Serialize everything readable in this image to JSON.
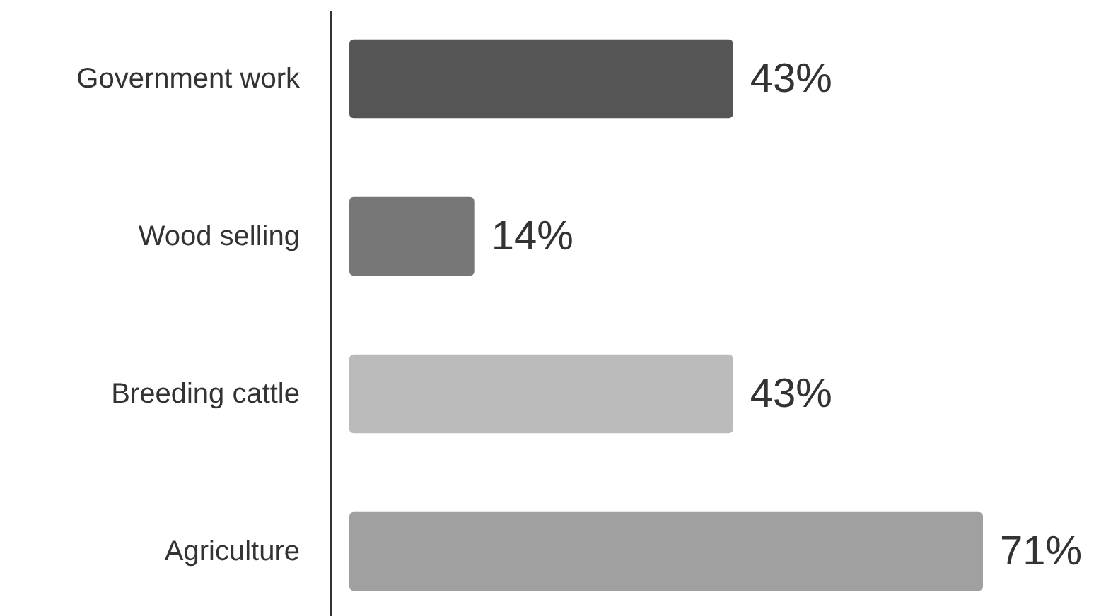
{
  "chart_data": {
    "type": "bar",
    "orientation": "horizontal",
    "categories": [
      "Government work",
      "Wood selling",
      "Breeding cattle",
      "Agriculture"
    ],
    "values": [
      43,
      14,
      43,
      71
    ],
    "colors": [
      "#555555",
      "#777777",
      "#bbbbbb",
      "#a0a0a0"
    ],
    "value_labels": [
      "43%",
      "14%",
      "43%",
      "71%"
    ]
  }
}
